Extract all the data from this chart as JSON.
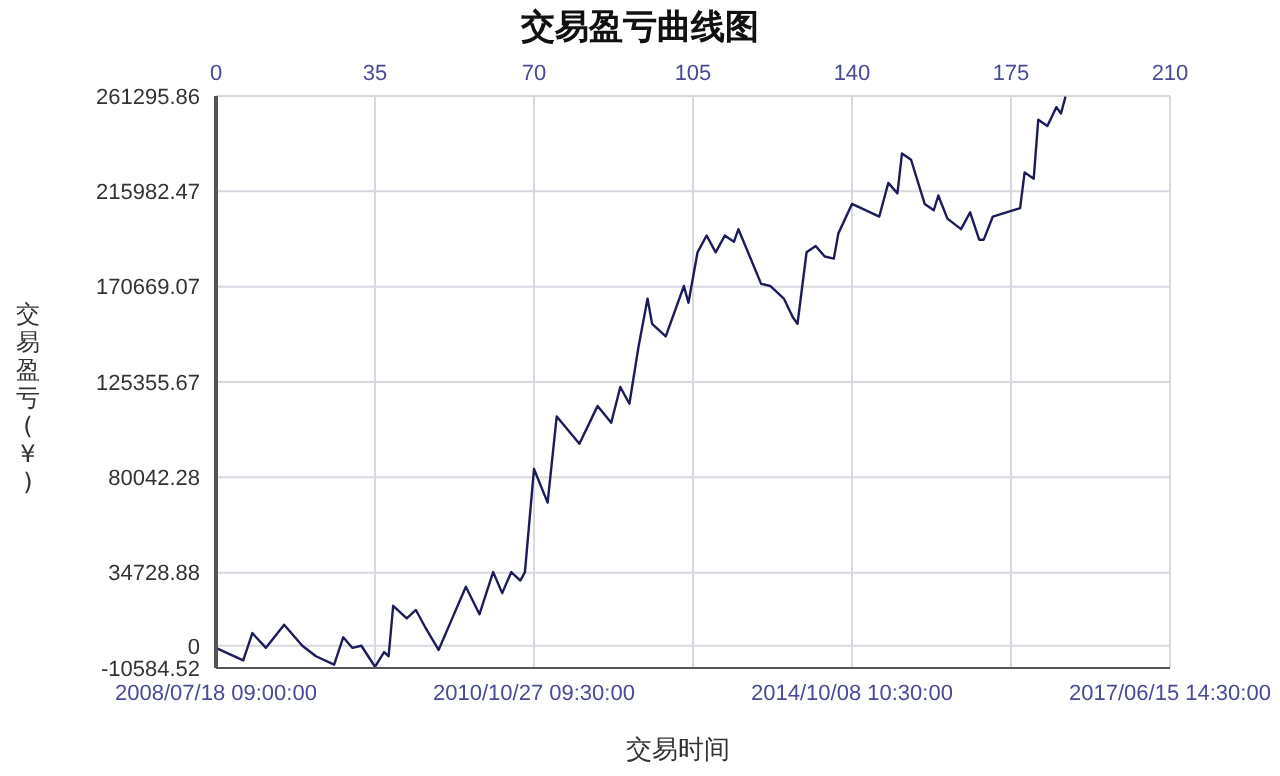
{
  "chart_data": {
    "type": "line",
    "title": "交易盈亏曲线图",
    "xlabel": "交易时间",
    "ylabel": "交易盈亏(¥)",
    "xlim": [
      0,
      210
    ],
    "xticks": [
      0,
      35,
      70,
      105,
      140,
      175,
      210
    ],
    "annotations": [
      "2008/07/18 09:00:00",
      "2010/10/27 09:30:00",
      "2014/10/08 10:30:00",
      "2017/06/15 14:30:00"
    ],
    "ylim": [
      -10584.52,
      261295.86
    ],
    "yticks": [
      -10584.52,
      0,
      34728.88,
      80042.28,
      125355.67,
      170669.07,
      215982.47,
      261295.86
    ],
    "grid": true,
    "series": [
      {
        "color": "#1c1c5a",
        "x": [
          0,
          2,
          6,
          8,
          11,
          15,
          19,
          22,
          26,
          28,
          30,
          32,
          35,
          37,
          38,
          39,
          42,
          44,
          46,
          49,
          52,
          55,
          58,
          61,
          63,
          65,
          67,
          68,
          70,
          73,
          75,
          80,
          84,
          87,
          89,
          91,
          93,
          95,
          96,
          99,
          103,
          104,
          106,
          108,
          110,
          112,
          114,
          115,
          120,
          122,
          125,
          127,
          128,
          130,
          132,
          134,
          136,
          137,
          140,
          144,
          146,
          148,
          150,
          151,
          153,
          156,
          158,
          159,
          161,
          164,
          166,
          168,
          169,
          171,
          174,
          177,
          178,
          180,
          181,
          183,
          185,
          186,
          187
        ],
        "values": [
          -1000,
          -3000,
          -7000,
          6000,
          -1000,
          10000,
          0,
          -5000,
          -9000,
          4000,
          -1000,
          0,
          -10000,
          -3000,
          -5000,
          19000,
          13000,
          17000,
          9000,
          -2000,
          13000,
          28000,
          15000,
          35000,
          25000,
          35000,
          31000,
          35000,
          84000,
          68000,
          109000,
          96000,
          114000,
          106000,
          123000,
          115000,
          142000,
          165000,
          153000,
          147000,
          171000,
          163000,
          187000,
          195000,
          187000,
          195000,
          192000,
          198000,
          172000,
          171000,
          165000,
          156000,
          153000,
          187000,
          190000,
          185000,
          184000,
          196000,
          210000,
          206000,
          204000,
          220000,
          215000,
          234000,
          231000,
          210000,
          207000,
          214000,
          203000,
          198000,
          206000,
          193000,
          193000,
          204000,
          206000,
          208000,
          225000,
          222000,
          250000,
          247000,
          256000,
          253000,
          261000
        ]
      }
    ]
  }
}
